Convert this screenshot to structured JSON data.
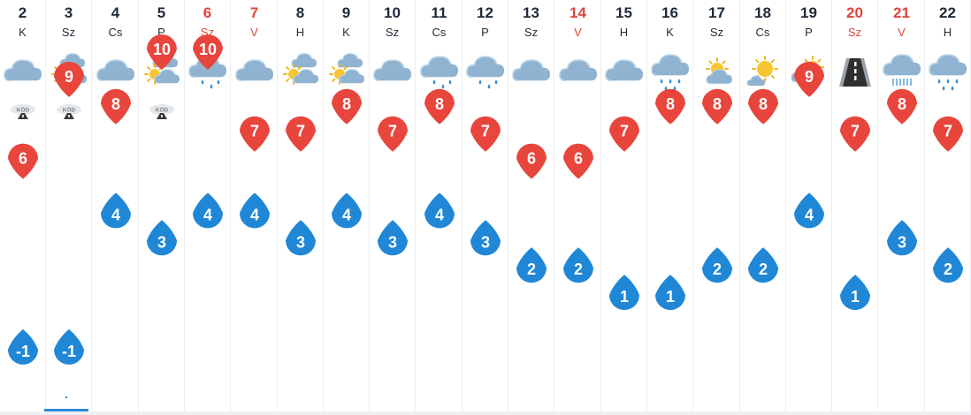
{
  "colors": {
    "max_marker": "#e8453c",
    "min_marker": "#1f87d6",
    "weekend_text": "#e0443a",
    "weekday_text": "#1f2a38",
    "grid_line": "#eceef1",
    "selected_accent": "#2a8ad8"
  },
  "fog_label": "KÖD",
  "chart_data": {
    "type": "line",
    "title": "",
    "xlabel": "",
    "ylabel": "",
    "grid": false,
    "categories": [
      "2",
      "3",
      "4",
      "5",
      "6",
      "7",
      "8",
      "9",
      "10",
      "11",
      "12",
      "13",
      "14",
      "15",
      "16",
      "17",
      "18",
      "19",
      "20",
      "21",
      "22"
    ],
    "day_names": [
      "K",
      "Sz",
      "Cs",
      "P",
      "Sz",
      "V",
      "H",
      "K",
      "Sz",
      "Cs",
      "P",
      "Sz",
      "V",
      "H",
      "K",
      "Sz",
      "Cs",
      "P",
      "Sz",
      "V",
      "H"
    ],
    "weekend": [
      false,
      false,
      false,
      false,
      true,
      true,
      false,
      false,
      false,
      false,
      false,
      false,
      true,
      false,
      false,
      false,
      false,
      false,
      true,
      true,
      false
    ],
    "weather_icons": [
      "cloud-icon",
      "partly-cloudy-icon",
      "cloud-icon",
      "partly-cloudy-icon",
      "light-rain-icon",
      "cloud-icon",
      "partly-cloudy-icon",
      "partly-cloudy-icon",
      "cloud-icon",
      "light-rain-icon",
      "light-rain-icon",
      "cloud-icon",
      "cloud-icon",
      "cloud-icon",
      "rain-icon",
      "mostly-sunny-icon",
      "sunny-icon",
      "partly-sunny-icon",
      "wet-road-icon",
      "shower-icon",
      "rain-icon"
    ],
    "fog": [
      true,
      true,
      true,
      true,
      false,
      false,
      false,
      false,
      false,
      false,
      false,
      false,
      false,
      false,
      false,
      false,
      false,
      false,
      false,
      false,
      false
    ],
    "selected_index": 1,
    "ylim": [
      -3,
      12
    ],
    "series": [
      {
        "values": [
          6,
          9,
          8,
          10,
          10,
          7,
          7,
          8,
          7,
          8,
          7,
          6,
          6,
          7,
          8,
          8,
          8,
          9,
          7,
          8,
          7
        ]
      },
      {
        "values": [
          -1,
          -1,
          4,
          3,
          4,
          4,
          3,
          4,
          3,
          4,
          3,
          2,
          2,
          1,
          1,
          2,
          2,
          4,
          1,
          3,
          2
        ]
      }
    ]
  }
}
